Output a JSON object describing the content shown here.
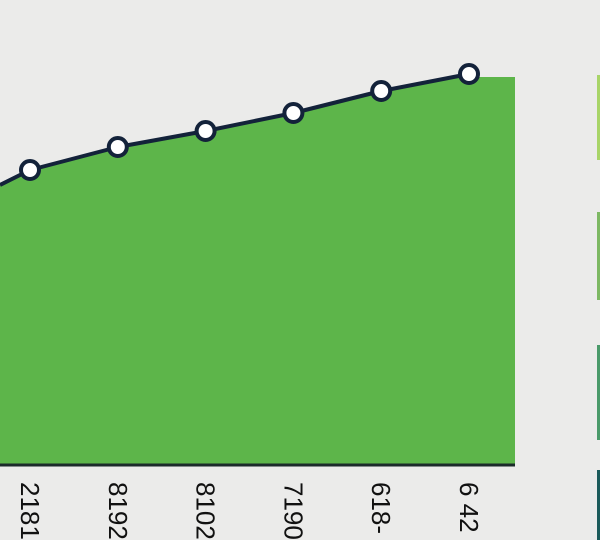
{
  "chart_data": {
    "type": "area",
    "title": "",
    "xlabel": "",
    "ylabel": "",
    "categories": [
      "2181",
      "8192",
      "8102",
      "7190",
      "618-",
      "6 42"
    ],
    "values": [
      295,
      318,
      334,
      352,
      374,
      391
    ],
    "ylim": [
      0,
      400
    ],
    "grid": false,
    "colors": {
      "area": "#5db54a",
      "line": "#13223a",
      "marker_fill": "#ffffff",
      "axis": "#1b2a2a",
      "background": "#ebebea"
    },
    "side_swatches": [
      "#a8d468",
      "#7db863",
      "#4a9a6a",
      "#1a5a5a"
    ]
  }
}
